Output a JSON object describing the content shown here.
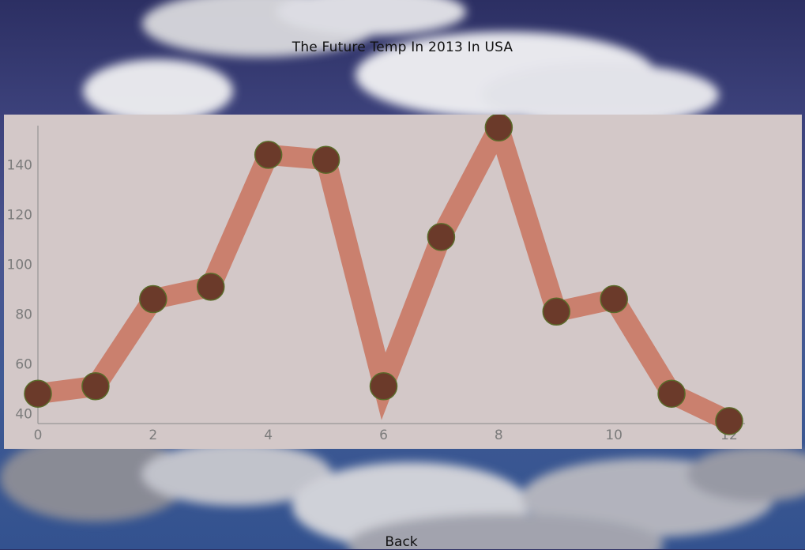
{
  "header": {
    "title": "The Future Temp In 2013 In USA"
  },
  "footer": {
    "back_label": "Back"
  },
  "colors": {
    "panel_bg": "#d3c8c8",
    "line": "#c97a66",
    "marker": "#6b3a2a",
    "marker_edge": "#5b6b2a",
    "axis": "#8a8a8a",
    "tick_text": "#7c7c7c"
  },
  "chart_data": {
    "type": "line",
    "title": "",
    "xlabel": "",
    "ylabel": "",
    "xlim": [
      0,
      12
    ],
    "ylim": [
      36,
      157
    ],
    "xticks": [
      0,
      2,
      4,
      6,
      8,
      10,
      12
    ],
    "yticks": [
      40,
      60,
      80,
      100,
      120,
      140
    ],
    "grid": false,
    "series": [
      {
        "x": [
          0,
          1,
          2,
          3,
          4,
          5,
          6,
          7,
          8,
          9,
          10,
          11,
          12
        ],
        "y": [
          48,
          51,
          86,
          91,
          144,
          142,
          51,
          111,
          155,
          81,
          86,
          48,
          37
        ]
      }
    ]
  }
}
